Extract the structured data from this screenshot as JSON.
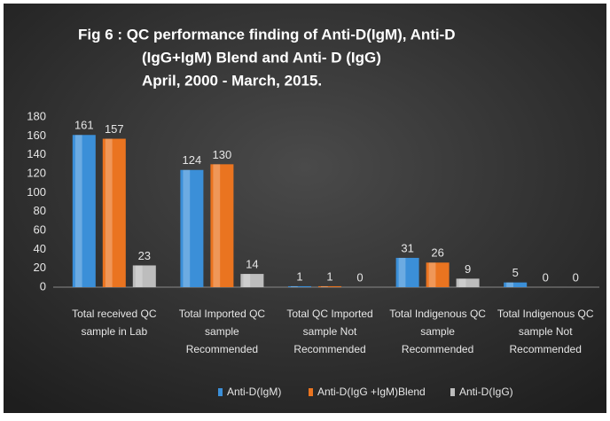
{
  "chart_data": {
    "type": "bar",
    "title": [
      "Fig 6 : QC performance  finding of Anti-D(IgM),  Anti-D",
      "(IgG+IgM) Blend and Anti- D (IgG)",
      "April, 2000 - March, 2015."
    ],
    "categories": [
      [
        "Total received QC",
        "sample in Lab"
      ],
      [
        "Total Imported QC",
        "sample",
        "Recommended"
      ],
      [
        "Total QC Imported",
        "sample Not",
        "Recommended"
      ],
      [
        "Total Indigenous QC",
        "sample",
        "Recommended"
      ],
      [
        "Total Indigenous QC",
        "sample  Not",
        "Recommended"
      ]
    ],
    "series": [
      {
        "name": "Anti-D(IgM)",
        "color": "#3b8fd8",
        "values": [
          161,
          124,
          1,
          31,
          5
        ]
      },
      {
        "name": "Anti-D(IgG +IgM)Blend",
        "color": "#ea7420",
        "values": [
          157,
          130,
          1,
          26,
          0
        ]
      },
      {
        "name": "Anti-D(IgG)",
        "color": "#bdbdbd",
        "values": [
          23,
          14,
          0,
          9,
          0
        ]
      }
    ],
    "ylim": [
      0,
      180
    ],
    "yticks": [
      0,
      20,
      40,
      60,
      80,
      100,
      120,
      140,
      160,
      180
    ],
    "legend": "bottom"
  }
}
